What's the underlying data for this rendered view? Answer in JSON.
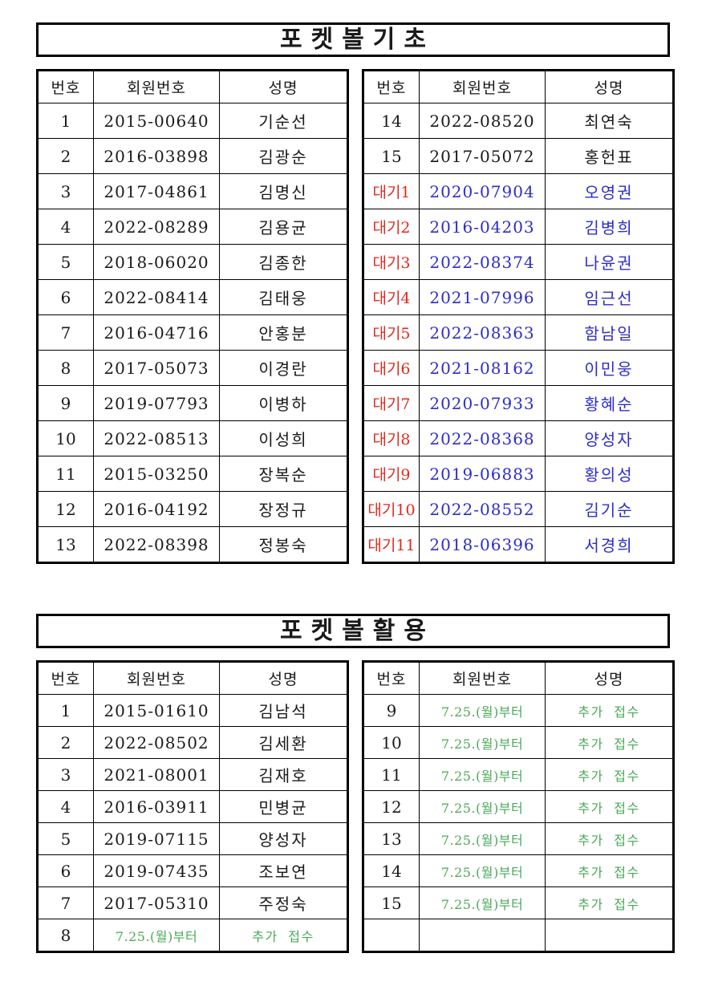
{
  "colors": {
    "red": "#e02a1f",
    "blue": "#2d2dcb",
    "green": "#4aa957",
    "ink": "#1a1a1a",
    "border": "#000000",
    "background": "#ffffff"
  },
  "section1": {
    "title": "포켓볼기초",
    "columns": [
      "번호",
      "회원번호",
      "성명"
    ],
    "left_rows": [
      {
        "no": "1",
        "member": "2015-00640",
        "name": "기순선",
        "style": "normal"
      },
      {
        "no": "2",
        "member": "2016-03898",
        "name": "김광순",
        "style": "normal"
      },
      {
        "no": "3",
        "member": "2017-04861",
        "name": "김명신",
        "style": "normal"
      },
      {
        "no": "4",
        "member": "2022-08289",
        "name": "김용균",
        "style": "normal"
      },
      {
        "no": "5",
        "member": "2018-06020",
        "name": "김종한",
        "style": "normal"
      },
      {
        "no": "6",
        "member": "2022-08414",
        "name": "김태웅",
        "style": "normal"
      },
      {
        "no": "7",
        "member": "2016-04716",
        "name": "안홍분",
        "style": "normal"
      },
      {
        "no": "8",
        "member": "2017-05073",
        "name": "이경란",
        "style": "normal"
      },
      {
        "no": "9",
        "member": "2019-07793",
        "name": "이병하",
        "style": "normal"
      },
      {
        "no": "10",
        "member": "2022-08513",
        "name": "이성희",
        "style": "normal"
      },
      {
        "no": "11",
        "member": "2015-03250",
        "name": "장복순",
        "style": "normal"
      },
      {
        "no": "12",
        "member": "2016-04192",
        "name": "장정규",
        "style": "normal"
      },
      {
        "no": "13",
        "member": "2022-08398",
        "name": "정봉숙",
        "style": "normal"
      }
    ],
    "right_rows": [
      {
        "no": "14",
        "member": "2022-08520",
        "name": "최연숙",
        "style": "normal"
      },
      {
        "no": "15",
        "member": "2017-05072",
        "name": "홍헌표",
        "style": "normal"
      },
      {
        "no": "대기1",
        "member": "2020-07904",
        "name": "오영권",
        "style": "wait"
      },
      {
        "no": "대기2",
        "member": "2016-04203",
        "name": "김병희",
        "style": "wait"
      },
      {
        "no": "대기3",
        "member": "2022-08374",
        "name": "나윤권",
        "style": "wait"
      },
      {
        "no": "대기4",
        "member": "2021-07996",
        "name": "임근선",
        "style": "wait"
      },
      {
        "no": "대기5",
        "member": "2022-08363",
        "name": "함남일",
        "style": "wait"
      },
      {
        "no": "대기6",
        "member": "2021-08162",
        "name": "이민웅",
        "style": "wait"
      },
      {
        "no": "대기7",
        "member": "2020-07933",
        "name": "황혜순",
        "style": "wait"
      },
      {
        "no": "대기8",
        "member": "2022-08368",
        "name": "양성자",
        "style": "wait"
      },
      {
        "no": "대기9",
        "member": "2019-06883",
        "name": "황의성",
        "style": "wait"
      },
      {
        "no": "대기10",
        "member": "2022-08552",
        "name": "김기순",
        "style": "wait"
      },
      {
        "no": "대기11",
        "member": "2018-06396",
        "name": "서경희",
        "style": "wait"
      }
    ]
  },
  "section2": {
    "title": "포켓볼활용",
    "columns": [
      "번호",
      "회원번호",
      "성명"
    ],
    "left_rows": [
      {
        "no": "1",
        "member": "2015-01610",
        "name": "김남석",
        "style": "normal"
      },
      {
        "no": "2",
        "member": "2022-08502",
        "name": "김세환",
        "style": "normal"
      },
      {
        "no": "3",
        "member": "2021-08001",
        "name": "김재호",
        "style": "normal"
      },
      {
        "no": "4",
        "member": "2016-03911",
        "name": "민병균",
        "style": "normal"
      },
      {
        "no": "5",
        "member": "2019-07115",
        "name": "양성자",
        "style": "normal"
      },
      {
        "no": "6",
        "member": "2019-07435",
        "name": "조보연",
        "style": "normal"
      },
      {
        "no": "7",
        "member": "2017-05310",
        "name": "주정숙",
        "style": "normal"
      },
      {
        "no": "8",
        "member": "7.25.(월)부터",
        "name": "추가 접수",
        "style": "extra"
      }
    ],
    "right_rows": [
      {
        "no": "9",
        "member": "7.25.(월)부터",
        "name": "추가 접수",
        "style": "extra"
      },
      {
        "no": "10",
        "member": "7.25.(월)부터",
        "name": "추가 접수",
        "style": "extra"
      },
      {
        "no": "11",
        "member": "7.25.(월)부터",
        "name": "추가 접수",
        "style": "extra"
      },
      {
        "no": "12",
        "member": "7.25.(월)부터",
        "name": "추가 접수",
        "style": "extra"
      },
      {
        "no": "13",
        "member": "7.25.(월)부터",
        "name": "추가 접수",
        "style": "extra"
      },
      {
        "no": "14",
        "member": "7.25.(월)부터",
        "name": "추가 접수",
        "style": "extra"
      },
      {
        "no": "15",
        "member": "7.25.(월)부터",
        "name": "추가 접수",
        "style": "extra"
      },
      {
        "no": "",
        "member": "",
        "name": "",
        "style": "empty"
      }
    ]
  }
}
